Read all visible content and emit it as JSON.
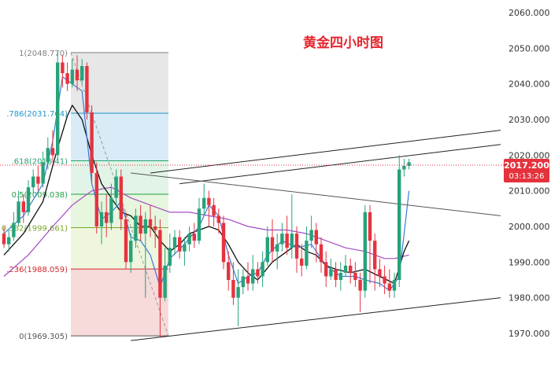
{
  "chart_data": {
    "type": "candlestick",
    "title": "黄金四小时图",
    "y_axis": {
      "ylim": [
        1963,
        2062
      ],
      "ticks": [
        "2060.000",
        "2050.000",
        "2040.000",
        "2030.000",
        "2020.000",
        "2010.000",
        "2000.000",
        "1990.000",
        "1980.000",
        "1970.000"
      ],
      "tick_values": [
        2060,
        2050,
        2040,
        2030,
        2020,
        2010,
        2000,
        1990,
        1980,
        1970
      ]
    },
    "current_price": {
      "label": "2017.200",
      "value": 2017.2,
      "countdown": "03:13:26",
      "color": "#e5323c"
    },
    "fibonacci": [
      {
        "ratio": "1",
        "price": 2048.77,
        "label": "1(2048.770)",
        "color": "#7f7f7f"
      },
      {
        "ratio": "0.786",
        "price": 2031.764,
        "label": ".786(2031.764)",
        "color": "#2196c8"
      },
      {
        "ratio": "0.618",
        "price": 2018.41,
        "label": ".618(2018.41)",
        "color": "#22a36a"
      },
      {
        "ratio": "0.5",
        "price": 2009.038,
        "label": "0.5(2009.038)",
        "color": "#1fa046"
      },
      {
        "ratio": "0.382",
        "price": 1999.661,
        "label": "0.382(1999.661)",
        "color": "#7aa62a"
      },
      {
        "ratio": "0.236",
        "price": 1988.059,
        "label": ".236(1988.059)",
        "color": "#d2272c"
      },
      {
        "ratio": "0",
        "price": 1969.305,
        "label": "0(1969.305)",
        "color": "#555555"
      }
    ],
    "colors": {
      "up": "#27a27a",
      "down": "#e53340",
      "ma_fast": "#3a7bd5",
      "ma_mid": "#111111",
      "ma_slow": "#a64cc4"
    },
    "candles": [
      [
        1998,
        1995,
        2000,
        1994
      ],
      [
        1995,
        1997,
        1999,
        1993
      ],
      [
        1997,
        2001,
        2004,
        1996
      ],
      [
        2001,
        2007,
        2010,
        2000
      ],
      [
        2007,
        2004,
        2009,
        2001
      ],
      [
        2004,
        2011,
        2013,
        2003
      ],
      [
        2011,
        2014,
        2016,
        2009
      ],
      [
        2014,
        2012,
        2017,
        2010
      ],
      [
        2012,
        2018,
        2021,
        2011
      ],
      [
        2018,
        2022,
        2025,
        2016
      ],
      [
        2022,
        2020,
        2027,
        2018
      ],
      [
        2020,
        2046,
        2049,
        2019
      ],
      [
        2046,
        2043,
        2048,
        2039
      ],
      [
        2043,
        2040,
        2046,
        2038
      ],
      [
        2040,
        2044,
        2047,
        2039
      ],
      [
        2044,
        2041,
        2048,
        2038
      ],
      [
        2041,
        2045,
        2047,
        2040
      ],
      [
        2045,
        2032,
        2046,
        2030
      ],
      [
        2032,
        2015,
        2034,
        2012
      ],
      [
        2015,
        2000,
        2018,
        1998
      ],
      [
        2000,
        2004,
        2007,
        1995
      ],
      [
        2004,
        2001,
        2009,
        1997
      ],
      [
        2001,
        2008,
        2012,
        1999
      ],
      [
        2008,
        2014,
        2016,
        2006
      ],
      [
        2014,
        2002,
        2016,
        1999
      ],
      [
        2002,
        1990,
        2004,
        1988
      ],
      [
        1990,
        1996,
        1998,
        1987
      ],
      [
        1996,
        2003,
        2005,
        1994
      ],
      [
        2003,
        1998,
        2006,
        1996
      ],
      [
        1998,
        2002,
        2004,
        1980
      ],
      [
        2002,
        2000,
        2006,
        1997
      ],
      [
        2000,
        1999,
        2003,
        1994
      ],
      [
        1999,
        1980,
        2002,
        1969
      ],
      [
        1980,
        1989,
        1994,
        1979
      ],
      [
        1989,
        1994,
        1998,
        1987
      ],
      [
        1994,
        1997,
        1999,
        1992
      ],
      [
        1997,
        1993,
        1999,
        1991
      ],
      [
        1993,
        1995,
        1997,
        1989
      ],
      [
        1995,
        1998,
        2000,
        1993
      ],
      [
        1998,
        1996,
        2001,
        1994
      ],
      [
        1996,
        2005,
        2008,
        1995
      ],
      [
        2005,
        2008,
        2012,
        2003
      ],
      [
        2008,
        2006,
        2010,
        2000
      ],
      [
        2006,
        2003,
        2008,
        2000
      ],
      [
        2003,
        2001,
        2005,
        1998
      ],
      [
        2001,
        1990,
        2003,
        1988
      ],
      [
        1990,
        1985,
        1993,
        1982
      ],
      [
        1985,
        1980,
        1990,
        1978
      ],
      [
        1980,
        1983,
        1988,
        1972
      ],
      [
        1983,
        1986,
        1988,
        1981
      ],
      [
        1986,
        1984,
        1990,
        1982
      ],
      [
        1984,
        1988,
        1992,
        1982
      ],
      [
        1988,
        1986,
        1990,
        1984
      ],
      [
        1986,
        1990,
        1993,
        1983
      ],
      [
        1990,
        1997,
        2000,
        1989
      ],
      [
        1997,
        1993,
        2002,
        1990
      ],
      [
        1993,
        1995,
        1998,
        1988
      ],
      [
        1995,
        1998,
        2001,
        1993
      ],
      [
        1998,
        1994,
        2003,
        1992
      ],
      [
        1994,
        1998,
        2009,
        1991
      ],
      [
        1998,
        1991,
        2000,
        1987
      ],
      [
        1991,
        1989,
        1995,
        1986
      ],
      [
        1989,
        1996,
        2000,
        1988
      ],
      [
        1996,
        1999,
        2003,
        1994
      ],
      [
        1999,
        1995,
        2001,
        1990
      ],
      [
        1995,
        1990,
        1997,
        1987
      ],
      [
        1990,
        1986,
        1993,
        1983
      ],
      [
        1986,
        1988,
        1991,
        1985
      ],
      [
        1988,
        1985,
        1990,
        1983
      ],
      [
        1985,
        1987,
        1990,
        1982
      ],
      [
        1987,
        1989,
        1992,
        1986
      ],
      [
        1989,
        1987,
        1991,
        1984
      ],
      [
        1987,
        1985,
        1990,
        1983
      ],
      [
        1985,
        1982,
        1987,
        1976
      ],
      [
        1982,
        2004,
        2006,
        1980
      ],
      [
        2004,
        1996,
        2006,
        1984
      ],
      [
        1996,
        1988,
        1998,
        1982
      ],
      [
        1988,
        1986,
        1991,
        1983
      ],
      [
        1986,
        1984,
        1989,
        1981
      ],
      [
        1984,
        1982,
        1988,
        1980
      ],
      [
        1982,
        1985,
        1987,
        1980
      ],
      [
        1985,
        2016,
        2020,
        1983
      ],
      [
        2016,
        2017,
        2019,
        2014
      ],
      [
        2017,
        2018,
        2019,
        2016
      ]
    ],
    "ma_fast": [
      [
        0,
        1998
      ],
      [
        4,
        2003
      ],
      [
        8,
        2012
      ],
      [
        10,
        2024
      ],
      [
        12,
        2042
      ],
      [
        14,
        2040
      ],
      [
        16,
        2038
      ],
      [
        18,
        2012
      ],
      [
        20,
        2002
      ],
      [
        22,
        2004
      ],
      [
        24,
        2007
      ],
      [
        26,
        1997
      ],
      [
        28,
        1996
      ],
      [
        30,
        1992
      ],
      [
        32,
        1983
      ],
      [
        34,
        1991
      ],
      [
        37,
        1995
      ],
      [
        40,
        2000
      ],
      [
        42,
        2006
      ],
      [
        44,
        2003
      ],
      [
        46,
        1992
      ],
      [
        48,
        1984
      ],
      [
        50,
        1986
      ],
      [
        52,
        1987
      ],
      [
        54,
        1992
      ],
      [
        57,
        1996
      ],
      [
        60,
        1994
      ],
      [
        63,
        1995
      ],
      [
        66,
        1989
      ],
      [
        69,
        1986
      ],
      [
        72,
        1986
      ],
      [
        74,
        1985
      ],
      [
        77,
        1984
      ],
      [
        79,
        1982
      ],
      [
        81,
        1986
      ],
      [
        83,
        2010
      ]
    ],
    "ma_mid": [
      [
        0,
        1992
      ],
      [
        4,
        1998
      ],
      [
        8,
        2007
      ],
      [
        11,
        2022
      ],
      [
        13,
        2031
      ],
      [
        14,
        2034
      ],
      [
        16,
        2030
      ],
      [
        18,
        2020
      ],
      [
        20,
        2012
      ],
      [
        22,
        2008
      ],
      [
        24,
        2004
      ],
      [
        26,
        2003
      ],
      [
        28,
        2000
      ],
      [
        30,
        2000
      ],
      [
        32,
        1996
      ],
      [
        34,
        1993
      ],
      [
        36,
        1995
      ],
      [
        38,
        1998
      ],
      [
        40,
        1999
      ],
      [
        42,
        2000
      ],
      [
        44,
        1999
      ],
      [
        46,
        1995
      ],
      [
        48,
        1990
      ],
      [
        50,
        1987
      ],
      [
        52,
        1985
      ],
      [
        55,
        1990
      ],
      [
        58,
        1993
      ],
      [
        60,
        1995
      ],
      [
        62,
        1993
      ],
      [
        64,
        1992
      ],
      [
        66,
        1989
      ],
      [
        68,
        1988
      ],
      [
        71,
        1987
      ],
      [
        74,
        1988
      ],
      [
        77,
        1986
      ],
      [
        80,
        1984
      ],
      [
        82,
        1993
      ],
      [
        83,
        1996
      ]
    ],
    "ma_slow": [
      [
        0,
        1986
      ],
      [
        5,
        1992
      ],
      [
        10,
        2000
      ],
      [
        14,
        2006
      ],
      [
        18,
        2010
      ],
      [
        22,
        2011
      ],
      [
        26,
        2008
      ],
      [
        30,
        2006
      ],
      [
        34,
        2004
      ],
      [
        38,
        2004
      ],
      [
        42,
        2003
      ],
      [
        46,
        2002
      ],
      [
        50,
        2000
      ],
      [
        54,
        1999
      ],
      [
        58,
        1999
      ],
      [
        62,
        1998
      ],
      [
        66,
        1996
      ],
      [
        70,
        1994
      ],
      [
        74,
        1993
      ],
      [
        78,
        1991
      ],
      [
        80,
        1991
      ],
      [
        83,
        1992
      ]
    ],
    "trendlines": [
      {
        "name": "upper-channel-1",
        "p1": [
          30,
          2015
        ],
        "p2": [
          140,
          2027
        ]
      },
      {
        "name": "upper-channel-2",
        "p1": [
          36,
          2012
        ],
        "p2": [
          140,
          2023
        ]
      },
      {
        "name": "descending-line",
        "p1": [
          26,
          2015
        ],
        "p2": [
          140,
          2003
        ]
      },
      {
        "name": "lower-support",
        "p1": [
          26,
          1968
        ],
        "p2": [
          140,
          1980
        ]
      }
    ]
  }
}
